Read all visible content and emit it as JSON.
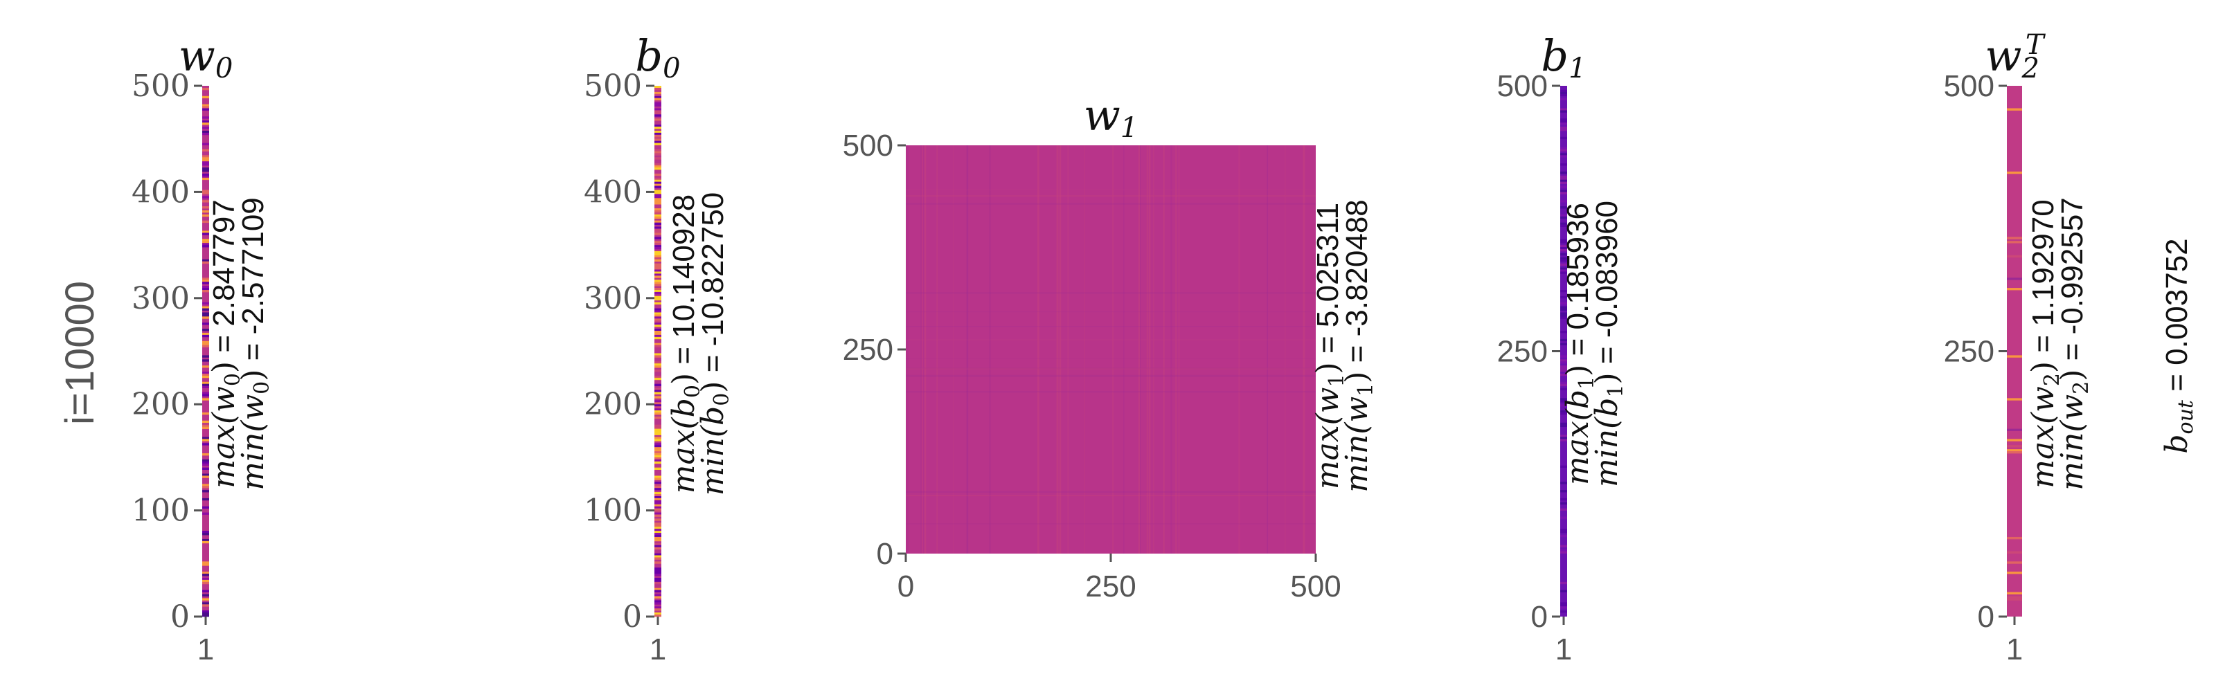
{
  "chart_data": [
    {
      "type": "heatmap",
      "title": "w",
      "title_sub": "0",
      "xticks": [
        "1"
      ],
      "yticks": [
        "0",
        "100",
        "200",
        "300",
        "400",
        "500"
      ],
      "ylim": [
        0,
        500
      ],
      "ylabel": "i=10000",
      "annotation_max": {
        "func": "max",
        "arg": "w",
        "sub": "0",
        "value": " = 2.847797"
      },
      "annotation_min": {
        "func": "min",
        "arg": "w",
        "sub": "0",
        "value": " = -2.577109"
      },
      "base_color": "#b8348a",
      "palette": [
        "#4b0c8a",
        "#6a00a8",
        "#8f0da4",
        "#e16462",
        "#f89540",
        "#fca636"
      ],
      "density": 0.45
    },
    {
      "type": "heatmap",
      "title": "b",
      "title_sub": "0",
      "xticks": [
        "1"
      ],
      "yticks": [
        "0",
        "100",
        "200",
        "300",
        "400",
        "500"
      ],
      "ylim": [
        0,
        500
      ],
      "annotation_max": {
        "func": "max",
        "arg": "b",
        "sub": "0",
        "value": " = 10.140928"
      },
      "annotation_min": {
        "func": "min",
        "arg": "b",
        "sub": "0",
        "value": " = -10.822750"
      },
      "base_color": "#b8348a",
      "palette": [
        "#6a00a8",
        "#8f0da4",
        "#cc4778",
        "#e16462",
        "#f89540",
        "#fcce25"
      ],
      "density": 0.7
    },
    {
      "type": "heatmap",
      "title": "w",
      "title_sub": "1",
      "xticks": [
        "0",
        "250",
        "500"
      ],
      "yticks": [
        "0",
        "250",
        "500"
      ],
      "xlim": [
        0,
        500
      ],
      "ylim": [
        0,
        500
      ],
      "annotation_max": {
        "func": "max",
        "arg": "w",
        "sub": "1",
        "value": " = 5.025311"
      },
      "annotation_min": {
        "func": "min",
        "arg": "w",
        "sub": "1",
        "value": " = -3.820488"
      },
      "base_color": "#b8348a",
      "palette": [
        "#c23f82",
        "#a82e8e",
        "#cc4778",
        "#9c2a93"
      ],
      "density": 0.25
    },
    {
      "type": "heatmap",
      "title": "b",
      "title_sub": "1",
      "xticks": [
        "1"
      ],
      "yticks": [
        "0",
        "250",
        "500"
      ],
      "ylim": [
        0,
        500
      ],
      "annotation_max": {
        "func": "max",
        "arg": "b",
        "sub": "1",
        "value": " = 0.185936"
      },
      "annotation_min": {
        "func": "min",
        "arg": "b",
        "sub": "1",
        "value": " = -0.083960"
      },
      "base_color": "#6a12b0",
      "palette": [
        "#5a06a6",
        "#7a12b0",
        "#8a1aa8",
        "#4c0a9c"
      ],
      "density": 0.35
    },
    {
      "type": "heatmap",
      "title": "w",
      "title_sub": "2",
      "title_sup": "T",
      "xticks": [
        "1"
      ],
      "yticks": [
        "0",
        "250",
        "500"
      ],
      "ylim": [
        0,
        500
      ],
      "annotation_max": {
        "func": "max",
        "arg": "w",
        "sub": "2",
        "value": " = 1.192970"
      },
      "annotation_min": {
        "func": "min",
        "arg": "w",
        "sub": "2",
        "value": " = -0.992557"
      },
      "base_color": "#c03a86",
      "palette": [
        "#9c2a93",
        "#cc4778",
        "#e16462",
        "#f89540"
      ],
      "density": 0.05
    }
  ],
  "bias_out": {
    "symbol": "b",
    "sub": "out",
    "value": " = 0.003752"
  }
}
